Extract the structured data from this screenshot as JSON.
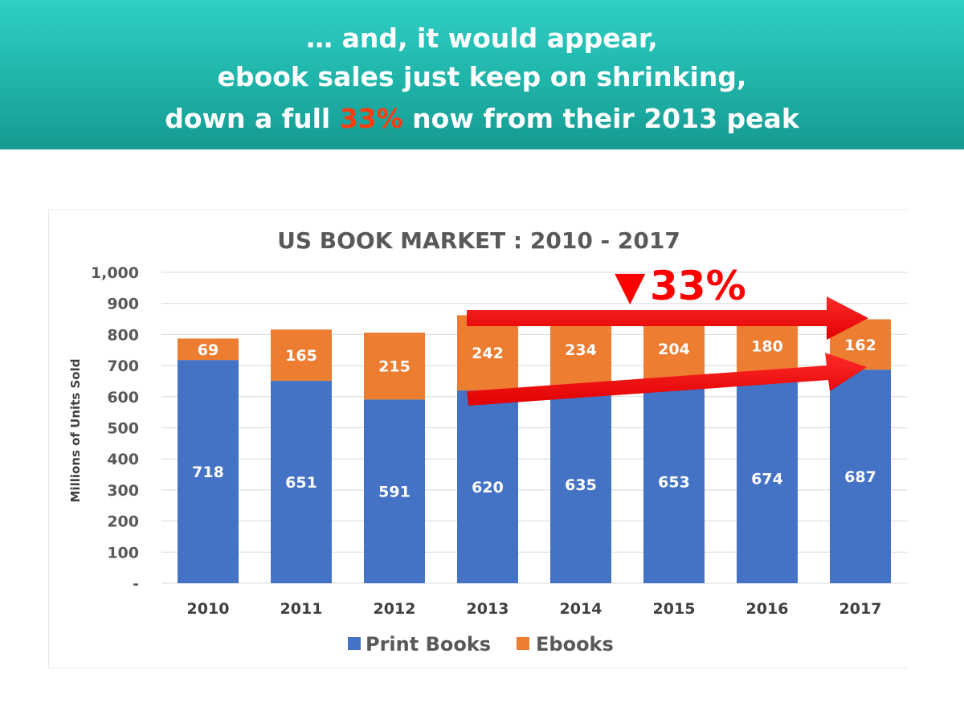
{
  "header": {
    "line1": "… and, it would appear,",
    "line2": "ebook sales just keep on shrinking,",
    "line3_before": "down a full ",
    "line3_highlight": "33%",
    "line3_after": " now from their 2013 peak",
    "background_color": "#1fb3a9",
    "highlight_color": "#ff3b10"
  },
  "chart_data": {
    "type": "bar",
    "stacked": true,
    "title": "US BOOK MARKET : 2010 - 2017",
    "ylabel": "Millions of Units Sold",
    "xlabel": "",
    "categories": [
      "2010",
      "2011",
      "2012",
      "2013",
      "2014",
      "2015",
      "2016",
      "2017"
    ],
    "series": [
      {
        "name": "Print Books",
        "color": "#4472c4",
        "values": [
          718,
          651,
          591,
          620,
          635,
          653,
          674,
          687
        ]
      },
      {
        "name": "Ebooks",
        "color": "#ed7d31",
        "values": [
          69,
          165,
          215,
          242,
          234,
          204,
          180,
          162
        ]
      }
    ],
    "ylim": [
      0,
      1000
    ],
    "yticks": [
      "-",
      "100",
      "200",
      "300",
      "400",
      "500",
      "600",
      "700",
      "800",
      "900",
      "1,000"
    ],
    "grid": true,
    "legend": "bottom",
    "annotation": {
      "marker": "▼",
      "text": "33%",
      "color": "#ff0000"
    }
  }
}
